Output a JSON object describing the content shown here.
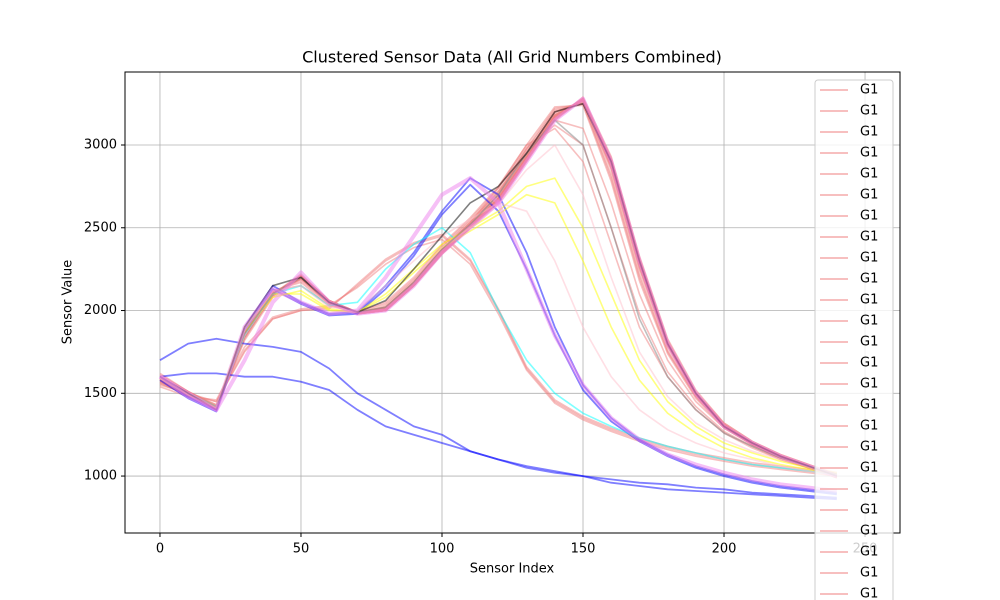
{
  "chart_data": {
    "type": "line",
    "title": "Clustered Sensor Data (All Grid Numbers Combined)",
    "x_label": "Sensor Index",
    "y_label": "Sensor Value",
    "xlim": [
      -12.4,
      262.4
    ],
    "ylim": [
      656,
      3441
    ],
    "xticks": [
      0,
      50,
      100,
      150,
      200,
      250
    ],
    "yticks": [
      1000,
      1500,
      2000,
      2500,
      3000
    ],
    "grid": true,
    "legend": "upper right",
    "line_alpha": 0.5,
    "x": [
      0,
      10,
      20,
      30,
      40,
      50,
      60,
      70,
      80,
      90,
      100,
      110,
      120,
      130,
      140,
      150,
      160,
      170,
      180,
      190,
      200,
      210,
      220,
      230,
      240
    ],
    "series": [
      {
        "name": "G1",
        "color": "#f08080",
        "values": [
          1550,
          1500,
          1450,
          1750,
          1950,
          2000,
          2020,
          2150,
          2300,
          2400,
          2450,
          2300,
          2000,
          1650,
          1450,
          1350,
          1280,
          1220,
          1170,
          1130,
          1100,
          1070,
          1050,
          1030,
          1010
        ]
      },
      {
        "name": "G1",
        "color": "#f08080",
        "values": [
          1580,
          1490,
          1420,
          1850,
          2100,
          2220,
          2060,
          1990,
          2010,
          2150,
          2340,
          2500,
          2660,
          2920,
          3180,
          3270,
          2880,
          2280,
          1800,
          1500,
          1310,
          1200,
          1120,
          1060,
          1000
        ]
      },
      {
        "name": "G1",
        "color": "#f08080",
        "values": [
          1600,
          1500,
          1410,
          1820,
          2080,
          2200,
          2050,
          1980,
          2000,
          2160,
          2360,
          2520,
          2700,
          2980,
          3220,
          3250,
          2800,
          2200,
          1750,
          1480,
          1300,
          1190,
          1110,
          1050,
          990
        ]
      },
      {
        "name": "G1",
        "color": "#f08080",
        "values": [
          1570,
          1480,
          1400,
          1880,
          2120,
          2150,
          2030,
          1990,
          2050,
          2200,
          2400,
          2560,
          2750,
          3000,
          3100,
          2900,
          2400,
          1900,
          1600,
          1400,
          1260,
          1170,
          1100,
          1050,
          1000
        ]
      },
      {
        "name": "G1",
        "color": "#f08080",
        "values": [
          1590,
          1500,
          1430,
          1860,
          2090,
          2190,
          2050,
          1990,
          2020,
          2170,
          2380,
          2540,
          2720,
          2950,
          3200,
          3260,
          2860,
          2260,
          1790,
          1490,
          1300,
          1190,
          1110,
          1050,
          1000
        ]
      },
      {
        "name": "G1",
        "color": "#f08080",
        "values": [
          1610,
          1510,
          1420,
          1840,
          2100,
          2210,
          2060,
          1990,
          2000,
          2150,
          2350,
          2500,
          2680,
          2930,
          3170,
          3280,
          2920,
          2320,
          1820,
          1510,
          1320,
          1210,
          1130,
          1070,
          1010
        ]
      },
      {
        "name": "G1",
        "color": "#f08080",
        "values": [
          1560,
          1490,
          1410,
          1870,
          2110,
          2180,
          2040,
          1980,
          2030,
          2180,
          2370,
          2530,
          2710,
          2960,
          3150,
          3100,
          2650,
          2100,
          1700,
          1450,
          1290,
          1190,
          1110,
          1050,
          1000
        ]
      },
      {
        "name": "G1",
        "color": "#f08080",
        "values": [
          1540,
          1480,
          1460,
          1780,
          1960,
          2010,
          2030,
          2140,
          2280,
          2380,
          2430,
          2280,
          1980,
          1640,
          1440,
          1340,
          1270,
          1210,
          1160,
          1120,
          1090,
          1060,
          1040,
          1020,
          1000
        ]
      },
      {
        "name": "G1",
        "color": "#f08080",
        "values": [
          1600,
          1500,
          1400,
          1850,
          2100,
          2200,
          2050,
          1980,
          2000,
          2150,
          2350,
          2500,
          2650,
          2900,
          3150,
          3290,
          2930,
          2330,
          1830,
          1520,
          1320,
          1210,
          1130,
          1070,
          1010
        ]
      },
      {
        "name": "G1",
        "color": "#f08080",
        "values": [
          1580,
          1490,
          1420,
          1830,
          2090,
          2210,
          2060,
          1990,
          2010,
          2160,
          2360,
          2510,
          2690,
          2940,
          3190,
          3270,
          2870,
          2270,
          1790,
          1500,
          1310,
          1200,
          1120,
          1060,
          1000
        ]
      },
      {
        "name": "G1",
        "color": "#f08080",
        "values": [
          1620,
          1510,
          1430,
          1860,
          2110,
          2190,
          2040,
          1980,
          2020,
          2170,
          2370,
          2530,
          2740,
          3000,
          3230,
          3240,
          2780,
          2180,
          1740,
          1470,
          1290,
          1190,
          1110,
          1050,
          990
        ]
      },
      {
        "name": "G1",
        "color": "#f08080",
        "values": [
          1570,
          1490,
          1410,
          1840,
          2100,
          2200,
          2050,
          1990,
          2010,
          2150,
          2340,
          2500,
          2670,
          2910,
          3160,
          3280,
          2910,
          2310,
          1810,
          1500,
          1310,
          1200,
          1120,
          1060,
          1000
        ]
      },
      {
        "name": "G1",
        "color": "#f08080",
        "values": [
          1590,
          1500,
          1420,
          1850,
          2100,
          2210,
          2060,
          1990,
          2000,
          2150,
          2350,
          2510,
          2680,
          2930,
          3180,
          3270,
          2890,
          2290,
          1800,
          1500,
          1310,
          1200,
          1120,
          1060,
          1000
        ]
      },
      {
        "name": "G1",
        "color": "#f08080",
        "values": [
          1600,
          1500,
          1410,
          1870,
          2120,
          2170,
          2030,
          1990,
          2040,
          2190,
          2390,
          2550,
          2740,
          2980,
          3120,
          3000,
          2500,
          1980,
          1630,
          1420,
          1270,
          1180,
          1100,
          1050,
          1000
        ]
      },
      {
        "name": "G1",
        "color": "#f08080",
        "values": [
          1610,
          1510,
          1420,
          1850,
          2100,
          2200,
          2050,
          1980,
          2000,
          2150,
          2350,
          2500,
          2660,
          2910,
          3160,
          3280,
          2900,
          2300,
          1800,
          1500,
          1300,
          1200,
          1120,
          1060,
          1000
        ]
      },
      {
        "name": "G1",
        "color": "#f08080",
        "values": [
          1580,
          1490,
          1420,
          1840,
          2090,
          2200,
          2050,
          1990,
          2010,
          2160,
          2360,
          2520,
          2700,
          2950,
          3200,
          3260,
          2850,
          2250,
          1780,
          1490,
          1300,
          1190,
          1110,
          1050,
          1000
        ]
      },
      {
        "name": "G1",
        "color": "#f08080",
        "values": [
          1590,
          1500,
          1410,
          1850,
          2100,
          2210,
          2060,
          1990,
          2000,
          2150,
          2350,
          2500,
          2670,
          2920,
          3170,
          3280,
          2900,
          2300,
          1800,
          1500,
          1310,
          1200,
          1120,
          1060,
          1000
        ]
      },
      {
        "name": "G1",
        "color": "#f08080",
        "values": [
          1560,
          1490,
          1450,
          1760,
          1950,
          2000,
          2010,
          2160,
          2310,
          2410,
          2460,
          2310,
          2010,
          1660,
          1460,
          1360,
          1290,
          1230,
          1180,
          1140,
          1110,
          1080,
          1060,
          1040,
          1020
        ]
      },
      {
        "name": "G1",
        "color": "#f08080",
        "values": [
          1600,
          1500,
          1420,
          1850,
          2100,
          2200,
          2050,
          1980,
          2000,
          2150,
          2350,
          2500,
          2650,
          2900,
          3150,
          3280,
          2900,
          2300,
          1800,
          1500,
          1300,
          1200,
          1120,
          1060,
          1000
        ]
      },
      {
        "name": "G1",
        "color": "#f08080",
        "values": [
          1590,
          1490,
          1420,
          1850,
          2100,
          2200,
          2050,
          1990,
          2010,
          2160,
          2360,
          2510,
          2680,
          2930,
          3180,
          3270,
          2880,
          2280,
          1800,
          1500,
          1310,
          1200,
          1120,
          1060,
          1000
        ]
      },
      {
        "name": "G1",
        "color": "#f08080",
        "values": [
          1600,
          1500,
          1410,
          1860,
          2110,
          2190,
          2040,
          1980,
          2020,
          2170,
          2370,
          2530,
          2720,
          2970,
          3210,
          3250,
          2820,
          2220,
          1760,
          1480,
          1300,
          1190,
          1110,
          1050,
          990
        ]
      },
      {
        "name": "G1",
        "color": "#f08080",
        "values": [
          1580,
          1500,
          1420,
          1840,
          2100,
          2210,
          2060,
          1990,
          2000,
          2150,
          2350,
          2500,
          2670,
          2920,
          3170,
          3280,
          2910,
          2310,
          1810,
          1500,
          1310,
          1200,
          1120,
          1060,
          1000
        ]
      },
      {
        "name": "G1",
        "color": "#f08080",
        "values": [
          1600,
          1510,
          1420,
          1850,
          2100,
          2200,
          2050,
          1980,
          2000,
          2150,
          2350,
          2500,
          2660,
          2910,
          3160,
          3270,
          2890,
          2290,
          1800,
          1500,
          1300,
          1200,
          1120,
          1060,
          1000
        ]
      },
      {
        "name": "G1",
        "color": "#f08080",
        "values": [
          1570,
          1490,
          1410,
          1850,
          2100,
          2200,
          2050,
          1990,
          2010,
          2150,
          2350,
          2510,
          2680,
          2930,
          3180,
          3270,
          2880,
          2280,
          1790,
          1490,
          1300,
          1190,
          1110,
          1050,
          1000
        ]
      },
      {
        "name": "G1",
        "color": "#f08080",
        "values": [
          1590,
          1500,
          1420,
          1850,
          2100,
          2200,
          2050,
          1990,
          2000,
          2150,
          2350,
          2500,
          2660,
          2910,
          3170,
          3280,
          2900,
          2300,
          1800,
          1500,
          1310,
          1200,
          1120,
          1060,
          1000
        ]
      },
      {
        "color": "#0000ff",
        "values": [
          1600,
          1480,
          1400,
          1900,
          2150,
          2050,
          1980,
          1990,
          2150,
          2350,
          2600,
          2800,
          2700,
          2350,
          1900,
          1550,
          1350,
          1220,
          1130,
          1060,
          1010,
          970,
          940,
          920,
          900
        ]
      },
      {
        "color": "#0000ff",
        "values": [
          1580,
          1470,
          1390,
          1880,
          2130,
          2040,
          1970,
          1980,
          2130,
          2330,
          2580,
          2760,
          2600,
          2250,
          1850,
          1520,
          1330,
          1210,
          1120,
          1050,
          1000,
          960,
          930,
          910,
          890
        ]
      },
      {
        "color": "#0000ff",
        "values": [
          1700,
          1800,
          1830,
          1800,
          1780,
          1750,
          1650,
          1500,
          1400,
          1300,
          1250,
          1150,
          1100,
          1050,
          1020,
          1000,
          980,
          960,
          950,
          930,
          920,
          900,
          890,
          880,
          870
        ]
      },
      {
        "color": "#0000ff",
        "values": [
          1600,
          1620,
          1620,
          1600,
          1600,
          1570,
          1520,
          1400,
          1300,
          1250,
          1200,
          1150,
          1100,
          1060,
          1030,
          1000,
          960,
          940,
          920,
          910,
          900,
          890,
          880,
          870,
          860
        ]
      },
      {
        "color": "#00ffff",
        "values": [
          1600,
          1500,
          1420,
          1850,
          2100,
          2150,
          2030,
          2050,
          2250,
          2400,
          2500,
          2350,
          2000,
          1700,
          1500,
          1380,
          1300,
          1230,
          1180,
          1140,
          1100,
          1070,
          1050,
          1030,
          1010
        ]
      },
      {
        "color": "#ffff00",
        "values": [
          1600,
          1500,
          1420,
          1900,
          2100,
          2100,
          2000,
          1990,
          2100,
          2250,
          2400,
          2500,
          2600,
          2750,
          2800,
          2500,
          2100,
          1700,
          1450,
          1300,
          1200,
          1140,
          1090,
          1050,
          1020
        ]
      },
      {
        "color": "#ffff00",
        "values": [
          1590,
          1490,
          1410,
          1870,
          2080,
          2120,
          2010,
          1990,
          2080,
          2230,
          2380,
          2480,
          2580,
          2700,
          2650,
          2300,
          1900,
          1580,
          1380,
          1260,
          1170,
          1110,
          1070,
          1040,
          1010
        ]
      },
      {
        "color": "#ffc0cb",
        "values": [
          1600,
          1500,
          1420,
          1880,
          2120,
          2150,
          2020,
          2000,
          2150,
          2300,
          2450,
          2550,
          2650,
          2600,
          2300,
          1900,
          1600,
          1400,
          1280,
          1200,
          1140,
          1100,
          1060,
          1030,
          1000
        ]
      },
      {
        "color": "#ffc0cb",
        "values": [
          1610,
          1500,
          1420,
          1850,
          2100,
          2180,
          2030,
          1990,
          2050,
          2200,
          2380,
          2500,
          2640,
          2850,
          3000,
          2700,
          2200,
          1750,
          1480,
          1320,
          1220,
          1150,
          1100,
          1060,
          1020
        ]
      },
      {
        "color": "#808080",
        "values": [
          1600,
          1500,
          1420,
          1860,
          2100,
          2200,
          2050,
          1990,
          2020,
          2170,
          2370,
          2520,
          2700,
          2950,
          3150,
          3000,
          2500,
          1950,
          1600,
          1400,
          1260,
          1180,
          1110,
          1060,
          1010
        ]
      },
      {
        "color": "#000000",
        "values": [
          1600,
          1500,
          1400,
          1900,
          2150,
          2200,
          2050,
          1990,
          2060,
          2250,
          2450,
          2650,
          2750,
          2950,
          3200,
          3250,
          2900,
          2300,
          1800,
          1500,
          1300,
          1200,
          1120,
          1060,
          1000
        ]
      },
      {
        "color": "#ee82ee",
        "values": [
          1600,
          1500,
          1400,
          1700,
          2050,
          2230,
          2050,
          1980,
          2000,
          2150,
          2350,
          2500,
          2650,
          2900,
          3150,
          3280,
          2900,
          2300,
          1800,
          1500,
          1300,
          1200,
          1120,
          1060,
          1000
        ]
      },
      {
        "color": "#ee82ee",
        "values": [
          1600,
          1480,
          1400,
          1900,
          2130,
          2050,
          1980,
          2000,
          2200,
          2450,
          2700,
          2800,
          2650,
          2250,
          1850,
          1550,
          1350,
          1220,
          1130,
          1070,
          1020,
          980,
          950,
          930,
          910
        ]
      }
    ]
  }
}
